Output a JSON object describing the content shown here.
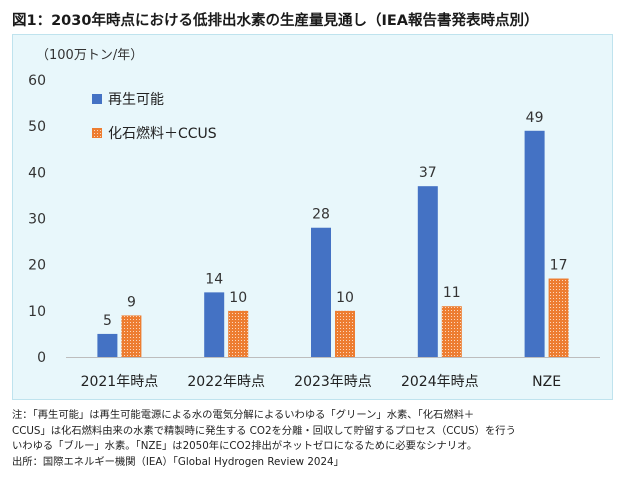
{
  "title": "図1：2030年時点における低排出水素の生産量見通し（IEA報告書発表時点別）",
  "unit_label": "（100万トン/年）",
  "colors": {
    "renewable": "#4472c4",
    "fossil_ccus": "#ed7d31",
    "background": "#e8f7fb"
  },
  "chart_data": {
    "type": "bar",
    "categories": [
      "2021年時点",
      "2022年時点",
      "2023年時点",
      "2024年時点",
      "NZE"
    ],
    "series": [
      {
        "name": "再生可能",
        "values": [
          5,
          14,
          28,
          37,
          49
        ],
        "color": "#4472c4",
        "pattern": "solid"
      },
      {
        "name": "化石燃料＋CCUS",
        "values": [
          9,
          10,
          10,
          11,
          17
        ],
        "color": "#ed7d31",
        "pattern": "dotted"
      }
    ],
    "ylim": [
      0,
      60
    ],
    "yticks": [
      0,
      10,
      20,
      30,
      40,
      50,
      60
    ],
    "data_labels": true,
    "legend_position": "top-left",
    "grid": false
  },
  "notes": [
    "注：「再生可能」は再生可能電源による水の電気分解によるいわゆる「グリーン」水素、「化石燃料＋",
    "CCUS」は化石燃料由来の水素で精製時に発生する CO2を分離・回収して貯留するプロセス（CCUS）を行う",
    "いわゆる「ブルー」水素。「NZE」は2050年にCO2排出がネットゼロになるために必要なシナリオ。",
    "出所：国際エネルギー機関（IEA）「Global Hydrogen Review 2024」"
  ]
}
